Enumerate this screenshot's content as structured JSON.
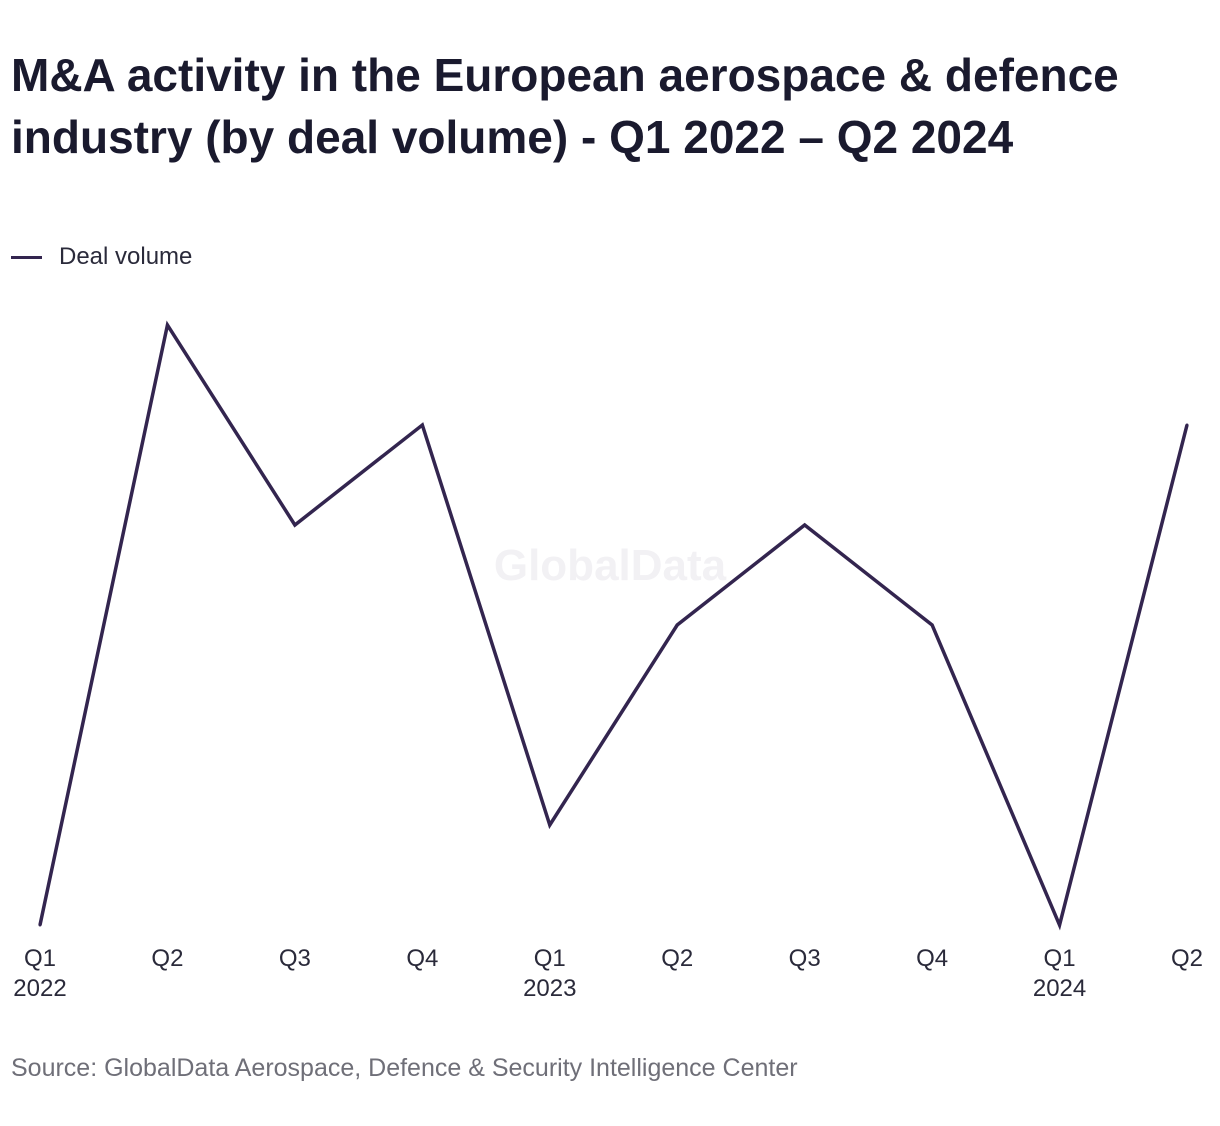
{
  "title": "M&A activity in the European aerospace & defence industry (by deal volume) - Q1 2022 – Q2 2024",
  "watermark": "GlobalData",
  "source": "Source: GlobalData Aerospace, Defence & Security Intelligence Center",
  "colors": {
    "line": "#33254f",
    "text": "#1a1a2e",
    "source": "#6f6f78"
  },
  "chart_data": {
    "type": "line",
    "categories": [
      "Q1 2022",
      "Q2 2022",
      "Q3 2022",
      "Q4 2022",
      "Q1 2023",
      "Q2 2023",
      "Q3 2023",
      "Q4 2023",
      "Q1 2024",
      "Q2 2024"
    ],
    "tick_labels": [
      {
        "quarter": "Q1",
        "year": "2022"
      },
      {
        "quarter": "Q2",
        "year": ""
      },
      {
        "quarter": "Q3",
        "year": ""
      },
      {
        "quarter": "Q4",
        "year": ""
      },
      {
        "quarter": "Q1",
        "year": "2023"
      },
      {
        "quarter": "Q2",
        "year": ""
      },
      {
        "quarter": "Q3",
        "year": ""
      },
      {
        "quarter": "Q4",
        "year": ""
      },
      {
        "quarter": "Q1",
        "year": "2024"
      },
      {
        "quarter": "Q2",
        "year": ""
      }
    ],
    "series": [
      {
        "name": "Deal volume",
        "values": [
          0,
          6,
          4,
          5,
          1,
          3,
          4,
          3,
          0,
          5
        ]
      }
    ],
    "ylim": [
      0,
      6
    ],
    "grid": false,
    "legend": "top-left",
    "y_axis_labels_shown": false
  }
}
